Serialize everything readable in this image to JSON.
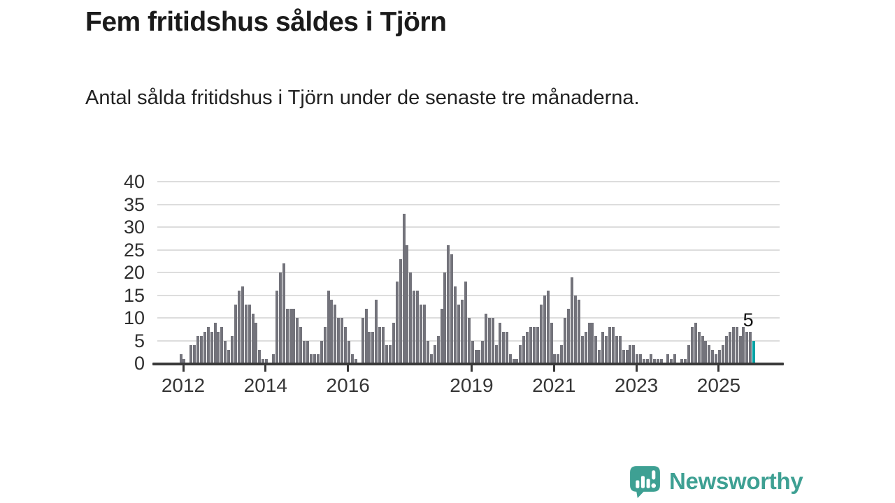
{
  "title": "Fem fritidshus såldes i Tjörn",
  "subtitle": "Antal sålda fritidshus i Tjörn under de senaste tre månaderna.",
  "chart_data": {
    "type": "bar",
    "title": "Fem fritidshus såldes i Tjörn",
    "xlabel": "",
    "ylabel": "",
    "ylim": [
      0,
      40
    ],
    "yticks": [
      0,
      5,
      10,
      15,
      20,
      25,
      30,
      35,
      40
    ],
    "xtick_years": [
      "2012",
      "2014",
      "2016",
      "2019",
      "2021",
      "2023",
      "2025"
    ],
    "grid": true,
    "x_start_estimate": "2011-12",
    "x_end_estimate": "2025-11",
    "values": [
      2,
      1,
      0,
      4,
      4,
      6,
      6,
      7,
      8,
      7,
      9,
      7,
      8,
      5,
      3,
      6,
      13,
      16,
      17,
      13,
      13,
      11,
      9,
      3,
      1,
      1,
      0,
      2,
      16,
      20,
      22,
      12,
      12,
      12,
      10,
      8,
      5,
      5,
      2,
      2,
      2,
      5,
      8,
      16,
      14,
      13,
      10,
      10,
      8,
      5,
      2,
      1,
      0,
      10,
      12,
      7,
      7,
      14,
      8,
      8,
      4,
      4,
      9,
      18,
      23,
      33,
      26,
      20,
      16,
      16,
      13,
      13,
      5,
      2,
      4,
      6,
      12,
      20,
      26,
      24,
      17,
      13,
      14,
      18,
      10,
      5,
      3,
      3,
      5,
      11,
      10,
      10,
      4,
      9,
      7,
      7,
      2,
      1,
      1,
      4,
      6,
      7,
      8,
      8,
      8,
      13,
      15,
      16,
      9,
      2,
      2,
      4,
      10,
      12,
      19,
      15,
      14,
      6,
      7,
      9,
      9,
      6,
      3,
      7,
      6,
      8,
      8,
      6,
      6,
      3,
      3,
      4,
      4,
      2,
      2,
      1,
      1,
      2,
      1,
      1,
      1,
      0,
      2,
      1,
      2,
      0,
      1,
      1,
      4,
      8,
      9,
      7,
      6,
      5,
      4,
      3,
      2,
      3,
      4,
      6,
      7,
      8,
      8,
      6,
      8,
      7,
      7,
      5
    ],
    "highlight_last": true,
    "last_value_label": "5",
    "bar_color": "#73737b",
    "highlight_color": "#00a2a5",
    "grid_color": "#dddddd",
    "axis_color": "#3a3a3a",
    "tick_text_color": "#363636"
  },
  "footer": {
    "brand": "Newsworthy",
    "logo_color": "#3ea093"
  }
}
